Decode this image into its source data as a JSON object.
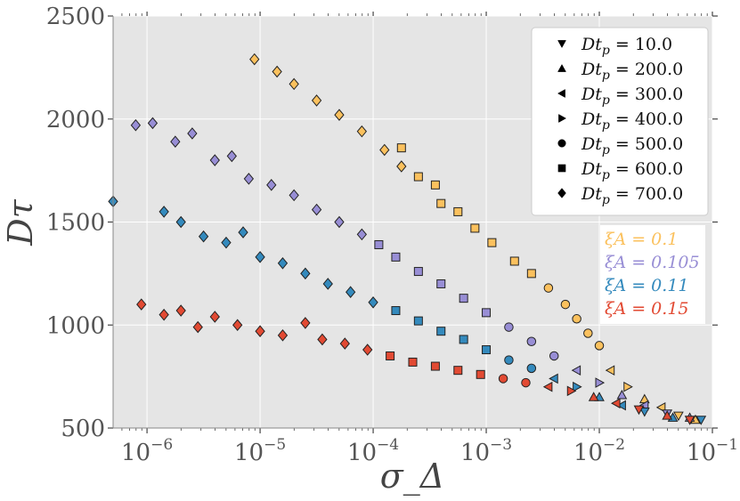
{
  "chart_data": {
    "type": "scatter",
    "title": "",
    "xlabel": "σ_Δ",
    "ylabel": "Dτ",
    "xscale": "log",
    "xlim_log10": [
      -6.3,
      -1
    ],
    "ylim": [
      500,
      2500
    ],
    "x_ticks": [
      {
        "exp": -6,
        "label": "10",
        "sup": "−6"
      },
      {
        "exp": -5,
        "label": "10",
        "sup": "−5"
      },
      {
        "exp": -4,
        "label": "10",
        "sup": "−4"
      },
      {
        "exp": -3,
        "label": "10",
        "sup": "−3"
      },
      {
        "exp": -2,
        "label": "10",
        "sup": "−2"
      },
      {
        "exp": -1,
        "label": "10",
        "sup": "−1"
      }
    ],
    "y_ticks": [
      {
        "value": 500,
        "label": "500"
      },
      {
        "value": 1000,
        "label": "1000"
      },
      {
        "value": 1500,
        "label": "1500"
      },
      {
        "value": 2000,
        "label": "2000"
      },
      {
        "value": 2500,
        "label": "2500"
      }
    ],
    "grid": true,
    "background": "#e5e5e5",
    "legend_position": "top-right",
    "legend": [
      {
        "marker": "triangle-down",
        "label": "Dt_p = 10.0"
      },
      {
        "marker": "triangle-up",
        "label": "Dt_p = 200.0"
      },
      {
        "marker": "triangle-left",
        "label": "Dt_p = 300.0"
      },
      {
        "marker": "triangle-right",
        "label": "Dt_p = 400.0"
      },
      {
        "marker": "circle",
        "label": "Dt_p = 500.0"
      },
      {
        "marker": "square",
        "label": "Dt_p = 600.0"
      },
      {
        "marker": "diamond",
        "label": "Dt_p = 700.0"
      }
    ],
    "annotation_position": "right",
    "color_annotations": [
      {
        "label": "ξA = 0.1",
        "color": "#fbc15e"
      },
      {
        "label": "ξA = 0.105",
        "color": "#988ed5"
      },
      {
        "label": "ξA = 0.11",
        "color": "#348abd"
      },
      {
        "label": "ξA = 0.15",
        "color": "#e24a33"
      }
    ],
    "series": [
      {
        "name": "ξA = 0.1",
        "color": "#fbc15e",
        "points": [
          {
            "marker": "diamond",
            "x_log10": -5.05,
            "y": 2290
          },
          {
            "marker": "diamond",
            "x_log10": -4.85,
            "y": 2230
          },
          {
            "marker": "diamond",
            "x_log10": -4.7,
            "y": 2170
          },
          {
            "marker": "diamond",
            "x_log10": -4.5,
            "y": 2090
          },
          {
            "marker": "diamond",
            "x_log10": -4.3,
            "y": 2020
          },
          {
            "marker": "diamond",
            "x_log10": -4.1,
            "y": 1940
          },
          {
            "marker": "diamond",
            "x_log10": -3.9,
            "y": 1850
          },
          {
            "marker": "square",
            "x_log10": -3.75,
            "y": 1860
          },
          {
            "marker": "diamond",
            "x_log10": -3.75,
            "y": 1770
          },
          {
            "marker": "square",
            "x_log10": -3.6,
            "y": 1720
          },
          {
            "marker": "square",
            "x_log10": -3.45,
            "y": 1680
          },
          {
            "marker": "square",
            "x_log10": -3.4,
            "y": 1590
          },
          {
            "marker": "square",
            "x_log10": -3.25,
            "y": 1550
          },
          {
            "marker": "square",
            "x_log10": -3.1,
            "y": 1470
          },
          {
            "marker": "square",
            "x_log10": -2.95,
            "y": 1400
          },
          {
            "marker": "square",
            "x_log10": -2.75,
            "y": 1310
          },
          {
            "marker": "square",
            "x_log10": -2.6,
            "y": 1250
          },
          {
            "marker": "circle",
            "x_log10": -2.45,
            "y": 1180
          },
          {
            "marker": "circle",
            "x_log10": -2.3,
            "y": 1100
          },
          {
            "marker": "circle",
            "x_log10": -2.2,
            "y": 1030
          },
          {
            "marker": "circle",
            "x_log10": -2.1,
            "y": 960
          },
          {
            "marker": "circle",
            "x_log10": -2.0,
            "y": 900
          },
          {
            "marker": "triangle-left",
            "x_log10": -1.9,
            "y": 780
          },
          {
            "marker": "triangle-right",
            "x_log10": -1.75,
            "y": 700
          },
          {
            "marker": "triangle-up",
            "x_log10": -1.6,
            "y": 640
          },
          {
            "marker": "triangle-left",
            "x_log10": -1.45,
            "y": 600
          },
          {
            "marker": "triangle-down",
            "x_log10": -1.3,
            "y": 560
          },
          {
            "marker": "triangle-up",
            "x_log10": -1.15,
            "y": 540
          }
        ]
      },
      {
        "name": "ξA = 0.105",
        "color": "#988ed5",
        "points": [
          {
            "marker": "diamond",
            "x_log10": -6.1,
            "y": 1970
          },
          {
            "marker": "diamond",
            "x_log10": -5.95,
            "y": 1980
          },
          {
            "marker": "diamond",
            "x_log10": -5.75,
            "y": 1890
          },
          {
            "marker": "diamond",
            "x_log10": -5.6,
            "y": 1930
          },
          {
            "marker": "diamond",
            "x_log10": -5.4,
            "y": 1800
          },
          {
            "marker": "diamond",
            "x_log10": -5.25,
            "y": 1820
          },
          {
            "marker": "diamond",
            "x_log10": -5.1,
            "y": 1710
          },
          {
            "marker": "diamond",
            "x_log10": -4.9,
            "y": 1680
          },
          {
            "marker": "diamond",
            "x_log10": -4.7,
            "y": 1630
          },
          {
            "marker": "diamond",
            "x_log10": -4.5,
            "y": 1560
          },
          {
            "marker": "diamond",
            "x_log10": -4.3,
            "y": 1500
          },
          {
            "marker": "diamond",
            "x_log10": -4.1,
            "y": 1440
          },
          {
            "marker": "square",
            "x_log10": -3.95,
            "y": 1390
          },
          {
            "marker": "square",
            "x_log10": -3.8,
            "y": 1330
          },
          {
            "marker": "square",
            "x_log10": -3.6,
            "y": 1260
          },
          {
            "marker": "square",
            "x_log10": -3.4,
            "y": 1200
          },
          {
            "marker": "square",
            "x_log10": -3.2,
            "y": 1130
          },
          {
            "marker": "square",
            "x_log10": -3.0,
            "y": 1060
          },
          {
            "marker": "circle",
            "x_log10": -2.8,
            "y": 990
          },
          {
            "marker": "circle",
            "x_log10": -2.6,
            "y": 920
          },
          {
            "marker": "circle",
            "x_log10": -2.4,
            "y": 850
          },
          {
            "marker": "triangle-left",
            "x_log10": -2.2,
            "y": 780
          },
          {
            "marker": "triangle-right",
            "x_log10": -2.0,
            "y": 720
          },
          {
            "marker": "triangle-up",
            "x_log10": -1.8,
            "y": 660
          },
          {
            "marker": "triangle-left",
            "x_log10": -1.6,
            "y": 610
          },
          {
            "marker": "triangle-down",
            "x_log10": -1.4,
            "y": 570
          },
          {
            "marker": "triangle-up",
            "x_log10": -1.2,
            "y": 550
          }
        ]
      },
      {
        "name": "ξA = 0.11",
        "color": "#348abd",
        "points": [
          {
            "marker": "diamond",
            "x_log10": -6.3,
            "y": 1600
          },
          {
            "marker": "diamond",
            "x_log10": -5.85,
            "y": 1550
          },
          {
            "marker": "diamond",
            "x_log10": -5.7,
            "y": 1500
          },
          {
            "marker": "diamond",
            "x_log10": -5.5,
            "y": 1430
          },
          {
            "marker": "diamond",
            "x_log10": -5.3,
            "y": 1400
          },
          {
            "marker": "diamond",
            "x_log10": -5.15,
            "y": 1450
          },
          {
            "marker": "diamond",
            "x_log10": -5.0,
            "y": 1330
          },
          {
            "marker": "diamond",
            "x_log10": -4.8,
            "y": 1300
          },
          {
            "marker": "diamond",
            "x_log10": -4.6,
            "y": 1250
          },
          {
            "marker": "diamond",
            "x_log10": -4.4,
            "y": 1200
          },
          {
            "marker": "diamond",
            "x_log10": -4.2,
            "y": 1160
          },
          {
            "marker": "diamond",
            "x_log10": -4.0,
            "y": 1110
          },
          {
            "marker": "square",
            "x_log10": -3.8,
            "y": 1070
          },
          {
            "marker": "square",
            "x_log10": -3.6,
            "y": 1020
          },
          {
            "marker": "square",
            "x_log10": -3.4,
            "y": 970
          },
          {
            "marker": "square",
            "x_log10": -3.2,
            "y": 930
          },
          {
            "marker": "square",
            "x_log10": -3.0,
            "y": 880
          },
          {
            "marker": "circle",
            "x_log10": -2.8,
            "y": 830
          },
          {
            "marker": "circle",
            "x_log10": -2.6,
            "y": 790
          },
          {
            "marker": "triangle-left",
            "x_log10": -2.4,
            "y": 740
          },
          {
            "marker": "triangle-right",
            "x_log10": -2.2,
            "y": 700
          },
          {
            "marker": "triangle-up",
            "x_log10": -2.0,
            "y": 650
          },
          {
            "marker": "triangle-left",
            "x_log10": -1.8,
            "y": 610
          },
          {
            "marker": "triangle-down",
            "x_log10": -1.6,
            "y": 580
          },
          {
            "marker": "triangle-up",
            "x_log10": -1.35,
            "y": 550
          },
          {
            "marker": "triangle-down",
            "x_log10": -1.1,
            "y": 540
          }
        ]
      },
      {
        "name": "ξA = 0.15",
        "color": "#e24a33",
        "points": [
          {
            "marker": "diamond",
            "x_log10": -6.05,
            "y": 1100
          },
          {
            "marker": "diamond",
            "x_log10": -5.85,
            "y": 1050
          },
          {
            "marker": "diamond",
            "x_log10": -5.7,
            "y": 1070
          },
          {
            "marker": "diamond",
            "x_log10": -5.55,
            "y": 990
          },
          {
            "marker": "diamond",
            "x_log10": -5.4,
            "y": 1040
          },
          {
            "marker": "diamond",
            "x_log10": -5.2,
            "y": 1000
          },
          {
            "marker": "diamond",
            "x_log10": -5.0,
            "y": 970
          },
          {
            "marker": "diamond",
            "x_log10": -4.8,
            "y": 950
          },
          {
            "marker": "diamond",
            "x_log10": -4.6,
            "y": 1010
          },
          {
            "marker": "diamond",
            "x_log10": -4.45,
            "y": 930
          },
          {
            "marker": "diamond",
            "x_log10": -4.25,
            "y": 910
          },
          {
            "marker": "diamond",
            "x_log10": -4.05,
            "y": 880
          },
          {
            "marker": "square",
            "x_log10": -3.85,
            "y": 850
          },
          {
            "marker": "square",
            "x_log10": -3.65,
            "y": 820
          },
          {
            "marker": "square",
            "x_log10": -3.45,
            "y": 800
          },
          {
            "marker": "square",
            "x_log10": -3.25,
            "y": 780
          },
          {
            "marker": "square",
            "x_log10": -3.05,
            "y": 760
          },
          {
            "marker": "circle",
            "x_log10": -2.85,
            "y": 740
          },
          {
            "marker": "circle",
            "x_log10": -2.65,
            "y": 720
          },
          {
            "marker": "triangle-left",
            "x_log10": -2.45,
            "y": 700
          },
          {
            "marker": "triangle-right",
            "x_log10": -2.25,
            "y": 680
          },
          {
            "marker": "triangle-up",
            "x_log10": -2.05,
            "y": 650
          },
          {
            "marker": "triangle-left",
            "x_log10": -1.85,
            "y": 620
          },
          {
            "marker": "triangle-down",
            "x_log10": -1.65,
            "y": 590
          },
          {
            "marker": "triangle-up",
            "x_log10": -1.4,
            "y": 560
          },
          {
            "marker": "triangle-down",
            "x_log10": -1.2,
            "y": 540
          }
        ]
      }
    ]
  }
}
